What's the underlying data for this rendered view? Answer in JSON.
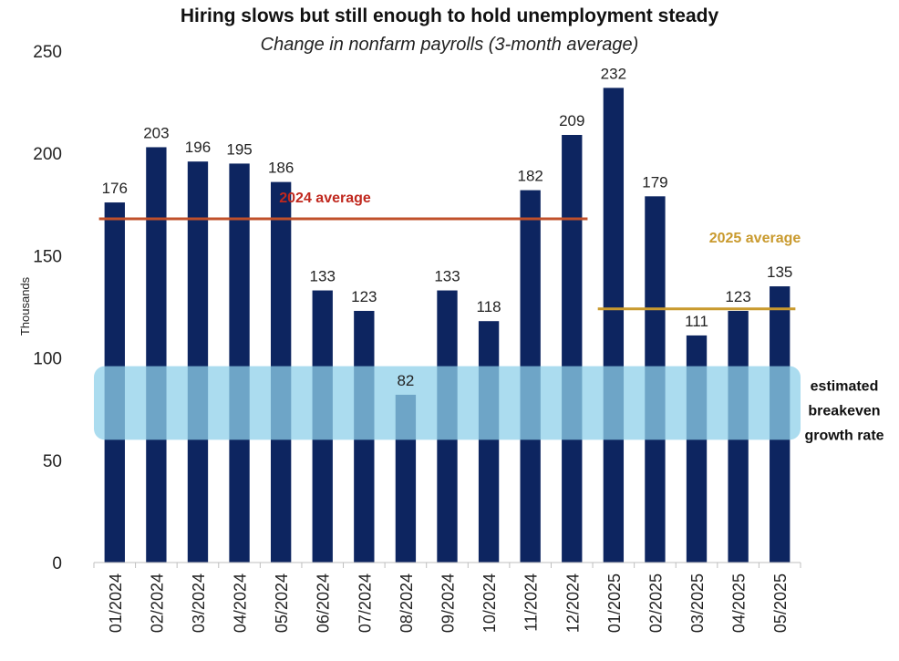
{
  "chart_data": {
    "type": "bar",
    "title": "Hiring slows but still enough to hold unemployment steady",
    "subtitle": "Change in nonfarm payrolls (3-month average)",
    "xlabel": "",
    "ylabel": "Thousands",
    "ylim": [
      0,
      250
    ],
    "yticks": [
      "0",
      "50",
      "100",
      "150",
      "200",
      "250"
    ],
    "grid": false,
    "categories": [
      "01/2024",
      "02/2024",
      "03/2024",
      "04/2024",
      "05/2024",
      "06/2024",
      "07/2024",
      "08/2024",
      "09/2024",
      "10/2024",
      "11/2024",
      "12/2024",
      "01/2025",
      "02/2025",
      "03/2025",
      "04/2025",
      "05/2025"
    ],
    "values": [
      176,
      203,
      196,
      195,
      186,
      133,
      123,
      82,
      133,
      118,
      182,
      209,
      232,
      179,
      111,
      123,
      135
    ],
    "value_labels": [
      "176",
      "203",
      "196",
      "195",
      "186",
      "133",
      "123",
      "82",
      "133",
      "118",
      "182",
      "209",
      "232",
      "179",
      "111",
      "123",
      "135"
    ],
    "bar_color": "#0d2560",
    "reference_lines": [
      {
        "label": "2024 average",
        "value": 168,
        "from": "01/2024",
        "to": "12/2024",
        "color": "#c0502a"
      },
      {
        "label": "2025 average",
        "value": 124,
        "from": "01/2025",
        "to": "05/2025",
        "color": "#c99a2e"
      }
    ],
    "band": {
      "label_lines": [
        "estimated",
        "breakeven",
        "growth rate"
      ],
      "range": [
        60,
        96
      ],
      "color": "#8fd0ea"
    }
  }
}
